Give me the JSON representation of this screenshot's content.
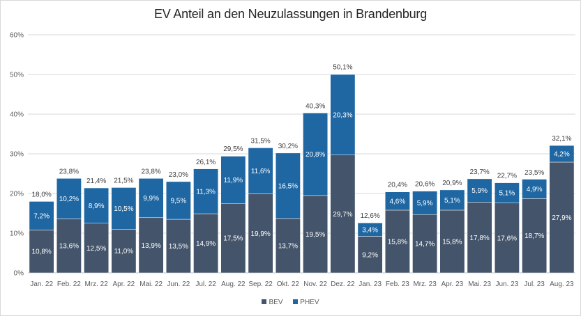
{
  "chart_data": {
    "type": "bar",
    "stacked": true,
    "title": "EV Anteil an den Neuzulassungen in Brandenburg",
    "xlabel": "",
    "ylabel": "",
    "ylim": [
      0,
      60
    ],
    "y_ticks": [
      "0%",
      "10%",
      "20%",
      "30%",
      "40%",
      "50%",
      "60%"
    ],
    "categories": [
      "Jan. 22",
      "Feb. 22",
      "Mrz. 22",
      "Apr. 22",
      "Mai. 22",
      "Jun. 22",
      "Jul. 22",
      "Aug. 22",
      "Sep. 22",
      "Okt. 22",
      "Nov. 22",
      "Dez. 22",
      "Jan. 23",
      "Feb. 23",
      "Mrz. 23",
      "Apr. 23",
      "Mai. 23",
      "Jun. 23",
      "Jul. 23",
      "Aug. 23"
    ],
    "series": [
      {
        "name": "BEV",
        "color": "#44546a",
        "values": [
          10.8,
          13.6,
          12.5,
          11.0,
          13.9,
          13.5,
          14.9,
          17.5,
          19.9,
          13.7,
          19.5,
          29.7,
          9.2,
          15.8,
          14.7,
          15.8,
          17.8,
          17.6,
          18.7,
          27.9
        ],
        "labels": [
          "10,8%",
          "13,6%",
          "12,5%",
          "11,0%",
          "13,9%",
          "13,5%",
          "14,9%",
          "17,5%",
          "19,9%",
          "13,7%",
          "19,5%",
          "29,7%",
          "9,2%",
          "15,8%",
          "14,7%",
          "15,8%",
          "17,8%",
          "17,6%",
          "18,7%",
          "27,9%"
        ]
      },
      {
        "name": "PHEV",
        "color": "#1f67a3",
        "values": [
          7.2,
          10.2,
          8.9,
          10.5,
          9.9,
          9.5,
          11.3,
          11.9,
          11.6,
          16.5,
          20.8,
          20.3,
          3.4,
          4.6,
          5.9,
          5.1,
          5.9,
          5.1,
          4.9,
          4.2
        ],
        "labels": [
          "7,2%",
          "10,2%",
          "8,9%",
          "10,5%",
          "9,9%",
          "9,5%",
          "11,3%",
          "11,9%",
          "11,6%",
          "16,5%",
          "20,8%",
          "20,3%",
          "3,4%",
          "4,6%",
          "5,9%",
          "5,1%",
          "5,9%",
          "5,1%",
          "4,9%",
          "4,2%"
        ]
      }
    ],
    "totals": [
      18.0,
      23.8,
      21.4,
      21.5,
      23.8,
      23.0,
      26.1,
      29.5,
      31.5,
      30.2,
      40.3,
      50.1,
      12.6,
      20.4,
      20.6,
      20.9,
      23.7,
      22.7,
      23.5,
      32.1
    ],
    "total_labels": [
      "18,0%",
      "23,8%",
      "21,4%",
      "21,5%",
      "23,8%",
      "23,0%",
      "26,1%",
      "29,5%",
      "31,5%",
      "30,2%",
      "40,3%",
      "50,1%",
      "12,6%",
      "20,4%",
      "20,6%",
      "20,9%",
      "23,7%",
      "22,7%",
      "23,5%",
      "32,1%"
    ],
    "grid": true,
    "legend_position": "bottom"
  }
}
